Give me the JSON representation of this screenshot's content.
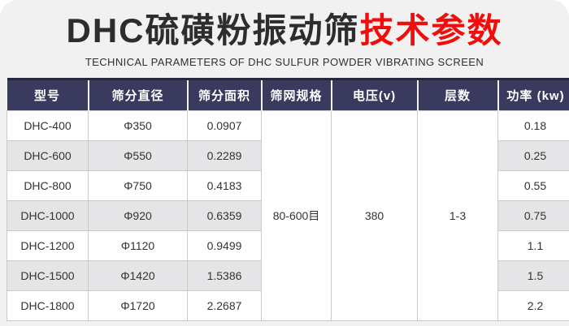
{
  "colors": {
    "card_bg": "#f1f1f2",
    "header_bg": "#3a3a5f",
    "header_top": "#26263f",
    "row_alt_bg": "#e5e4e7",
    "border": "#cbcbcb",
    "accent_red": "#f20d0d",
    "title_text": "#2d2d2d"
  },
  "header": {
    "title_main": "DHC硫磺粉振动筛",
    "title_accent": "技术参数",
    "subtitle": "TECHNICAL PARAMETERS OF DHC SULFUR POWDER VIBRATING SCREEN"
  },
  "table": {
    "columns": [
      "型号",
      "筛分直径",
      "筛分面积",
      "筛网规格",
      "电压(v)",
      "层数",
      "功率 (kw)"
    ],
    "merged": {
      "mesh_spec": "80-600目",
      "voltage": "380",
      "layers": "1-3"
    },
    "rows": [
      {
        "model": "DHC-400",
        "diameter": "Φ350",
        "area": "0.0907",
        "power": "0.18"
      },
      {
        "model": "DHC-600",
        "diameter": "Φ550",
        "area": "0.2289",
        "power": "0.25"
      },
      {
        "model": "DHC-800",
        "diameter": "Φ750",
        "area": "0.4183",
        "power": "0.55"
      },
      {
        "model": "DHC-1000",
        "diameter": "Φ920",
        "area": "0.6359",
        "power": "0.75"
      },
      {
        "model": "DHC-1200",
        "diameter": "Φ1120",
        "area": "0.9499",
        "power": "1.1"
      },
      {
        "model": "DHC-1500",
        "diameter": "Φ1420",
        "area": "1.5386",
        "power": "1.5"
      },
      {
        "model": "DHC-1800",
        "diameter": "Φ1720",
        "area": "2.2687",
        "power": "2.2"
      }
    ]
  }
}
